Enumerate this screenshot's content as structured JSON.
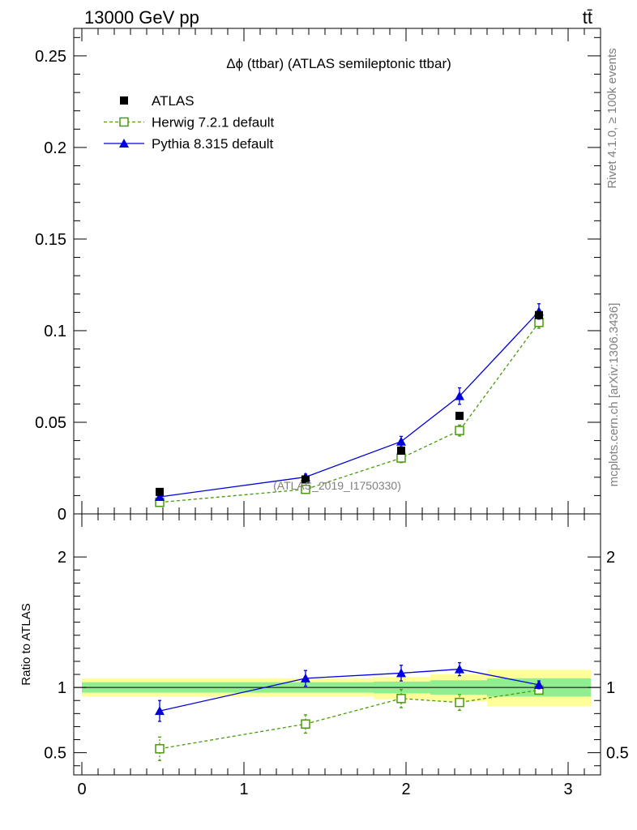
{
  "header": {
    "left": "13000 GeV pp",
    "right": "tt̄"
  },
  "side_labels": {
    "rivet": "Rivet 4.1.0, ≥ 100k events",
    "mcplots": "mcplots.cern.ch [arXiv:1306.3436]"
  },
  "chart_data": {
    "type": "scatter",
    "title": "Δϕ (ttbar) (ATLAS semileptonic ttbar)",
    "watermark": "(ATLAS_2019_I1750330)",
    "main": {
      "xlim": [
        -0.05,
        3.2
      ],
      "ylim": [
        0,
        0.265
      ],
      "yticks": [
        0.05,
        0.1,
        0.15,
        0.2,
        0.25
      ],
      "ytick_labels": [
        "0.05",
        "0.1",
        "0.15",
        "0.2",
        "0.25"
      ],
      "y_zero_label": "0",
      "series": [
        {
          "name": "ATLAS",
          "style": "data",
          "color": "#000000",
          "x": [
            0.48,
            1.38,
            1.97,
            2.33,
            2.82
          ],
          "y": [
            0.012,
            0.0188,
            0.0345,
            0.0535,
            0.1085
          ],
          "yerr": [
            0,
            0,
            0,
            0,
            0
          ]
        },
        {
          "name": "Herwig 7.2.1 default",
          "style": "open-square-dashed",
          "color": "#4a9a0c",
          "x": [
            0.48,
            1.38,
            1.97,
            2.33,
            2.82
          ],
          "y": [
            0.0063,
            0.0134,
            0.0305,
            0.0455,
            0.1045
          ],
          "yerr": [
            0.0011,
            0.0016,
            0.0025,
            0.003,
            0.0032
          ]
        },
        {
          "name": "Pythia 8.315 default",
          "style": "filled-triangle-solid",
          "color": "#0000dd",
          "x": [
            0.48,
            1.38,
            1.97,
            2.33,
            2.82
          ],
          "y": [
            0.0093,
            0.0201,
            0.0395,
            0.0643,
            0.1105
          ],
          "yerr": [
            0.0012,
            0.0016,
            0.0028,
            0.0045,
            0.0042
          ]
        }
      ]
    },
    "ratio": {
      "ylabel": "Ratio to ATLAS",
      "ylim": [
        0.33,
        2.33
      ],
      "yticks": [
        0.5,
        1,
        2
      ],
      "ytick_labels": [
        "0.5",
        "1",
        "2"
      ],
      "xticks": [
        0,
        1,
        2,
        3
      ],
      "xtick_labels": [
        "0",
        "1",
        "2",
        "3"
      ],
      "bands": [
        {
          "x0": 0.0,
          "x1": 1.8,
          "inner": [
            0.96,
            1.04
          ],
          "outer": [
            0.93,
            1.07
          ]
        },
        {
          "x0": 1.8,
          "x1": 2.15,
          "inner": [
            0.955,
            1.045
          ],
          "outer": [
            0.91,
            1.08
          ]
        },
        {
          "x0": 2.15,
          "x1": 2.5,
          "inner": [
            0.945,
            1.055
          ],
          "outer": [
            0.895,
            1.1
          ]
        },
        {
          "x0": 2.5,
          "x1": 3.14,
          "inner": [
            0.93,
            1.07
          ],
          "outer": [
            0.855,
            1.135
          ]
        }
      ],
      "series": [
        {
          "name": "Herwig 7.2.1 default",
          "style": "open-square-dashed",
          "color": "#4a9a0c",
          "x": [
            0.48,
            1.38,
            1.97,
            2.33,
            2.82
          ],
          "y": [
            0.53,
            0.72,
            0.915,
            0.885,
            0.98
          ],
          "yerr": [
            0.09,
            0.07,
            0.07,
            0.06,
            0.03
          ]
        },
        {
          "name": "Pythia 8.315 default",
          "style": "filled-triangle-solid",
          "color": "#0000dd",
          "x": [
            0.48,
            1.38,
            1.97,
            2.33,
            2.82
          ],
          "y": [
            0.82,
            1.07,
            1.11,
            1.14,
            1.02
          ],
          "yerr": [
            0.08,
            0.06,
            0.06,
            0.05,
            0.03
          ]
        }
      ]
    },
    "legend": {
      "position": "top-left",
      "entries": [
        {
          "label": "ATLAS",
          "style": "data",
          "color": "#000000"
        },
        {
          "label": "Herwig 7.2.1 default",
          "style": "open-square-dashed",
          "color": "#4a9a0c"
        },
        {
          "label": "Pythia 8.315 default",
          "style": "filled-triangle-solid",
          "color": "#0000dd"
        }
      ]
    },
    "colors": {
      "band_inner": "#90ee90",
      "band_outer": "#ffff99"
    }
  }
}
